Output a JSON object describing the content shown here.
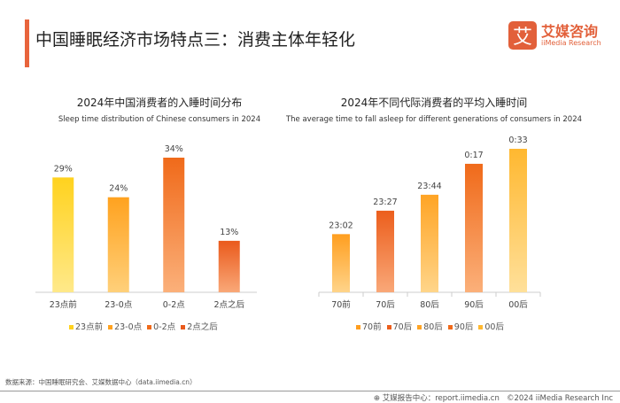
{
  "header": {
    "title": "中国睡眠经济市场特点三：消费主体年轻化",
    "logo_mark": "艾",
    "logo_cn": "艾媒咨询",
    "logo_en": "iiMedia Research"
  },
  "chart_data": [
    {
      "type": "bar",
      "title": "2024年中国消费者的入睡时间分布",
      "subtitle": "Sleep time distribution of Chinese consumers in 2024",
      "categories": [
        "23点前",
        "23-0点",
        "0-2点",
        "2点之后"
      ],
      "values": [
        29,
        24,
        34,
        13
      ],
      "labels": [
        "29%",
        "24%",
        "34%",
        "13%"
      ],
      "unit": "%",
      "ylim": [
        0,
        40
      ],
      "colors": [
        [
          "#ffd21e",
          "#ffe98a"
        ],
        [
          "#ffa21f",
          "#ffd07a"
        ],
        [
          "#f06a1a",
          "#fbb07a"
        ],
        [
          "#ea5a1c",
          "#f9a878"
        ]
      ],
      "legend": [
        "23点前",
        "23-0点",
        "0-2点",
        "2点之后"
      ],
      "legend_position": "bottom"
    },
    {
      "type": "bar",
      "title": "2024年不同代际消费者的平均入睡时间",
      "subtitle": "The average time to fall asleep for different generations of consumers in 2024",
      "categories": [
        "70前",
        "70后",
        "80后",
        "90后",
        "00后"
      ],
      "values": [
        "23:02",
        "23:27",
        "23:44",
        "0:17",
        "0:33"
      ],
      "labels": [
        "23:02",
        "23:27",
        "23:44",
        "0:17",
        "0:33"
      ],
      "colors": [
        [
          "#ff9e1f",
          "#ffd48a"
        ],
        [
          "#ec5e1c",
          "#f9a878"
        ],
        [
          "#ffa424",
          "#ffd58a"
        ],
        [
          "#f06a1a",
          "#fbb07a"
        ],
        [
          "#ffb830",
          "#ffe09a"
        ]
      ],
      "legend": [
        "70前",
        "70后",
        "80后",
        "90后",
        "00后"
      ],
      "legend_position": "bottom"
    }
  ],
  "footer": {
    "source": "数据来源：中国睡眠研究会、艾媒数据中心（data.iimedia.cn）",
    "report": "艾媒报告中心：report.iimedia.cn",
    "copyright": "©2024  iiMedia Research Inc"
  }
}
